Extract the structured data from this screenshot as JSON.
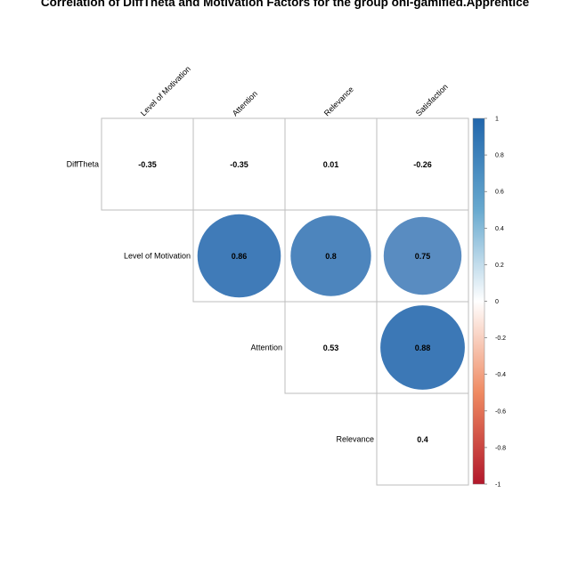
{
  "chart_data": {
    "type": "heatmap",
    "subtype": "correlation-matrix-upper",
    "title": "Correlation of DiffTheta and Motivation Factors for the group onl-gamified.Apprentice",
    "column_labels": [
      "Level of Motivation",
      "Attention",
      "Relevance",
      "Satisfaction"
    ],
    "row_labels": [
      "DiffTheta",
      "Level of Motivation",
      "Attention",
      "Relevance"
    ],
    "cells": [
      {
        "row": 0,
        "col": 0,
        "value": -0.35,
        "label": "-0.35",
        "shape": "none"
      },
      {
        "row": 0,
        "col": 1,
        "value": -0.35,
        "label": "-0.35",
        "shape": "none"
      },
      {
        "row": 0,
        "col": 2,
        "value": 0.01,
        "label": "0.01",
        "shape": "none"
      },
      {
        "row": 0,
        "col": 3,
        "value": -0.26,
        "label": "-0.26",
        "shape": "none"
      },
      {
        "row": 1,
        "col": 1,
        "value": 0.86,
        "label": "0.86",
        "shape": "circle"
      },
      {
        "row": 1,
        "col": 2,
        "value": 0.8,
        "label": "0.8",
        "shape": "circle"
      },
      {
        "row": 1,
        "col": 3,
        "value": 0.75,
        "label": "0.75",
        "shape": "circle"
      },
      {
        "row": 2,
        "col": 2,
        "value": 0.53,
        "label": "0.53",
        "shape": "none"
      },
      {
        "row": 2,
        "col": 3,
        "value": 0.88,
        "label": "0.88",
        "shape": "circle"
      },
      {
        "row": 3,
        "col": 3,
        "value": 0.4,
        "label": "0.4",
        "shape": "none"
      }
    ],
    "colorbar": {
      "range": [
        -1,
        1
      ],
      "ticks": [
        "1",
        "0.8",
        "0.6",
        "0.4",
        "0.2",
        "0",
        "-0.2",
        "-0.4",
        "-0.6",
        "-0.8",
        "-1"
      ],
      "colors": {
        "negative": "#b2182b",
        "neutral": "#ffffff",
        "positive": "#2166ac"
      }
    },
    "grid": true
  }
}
